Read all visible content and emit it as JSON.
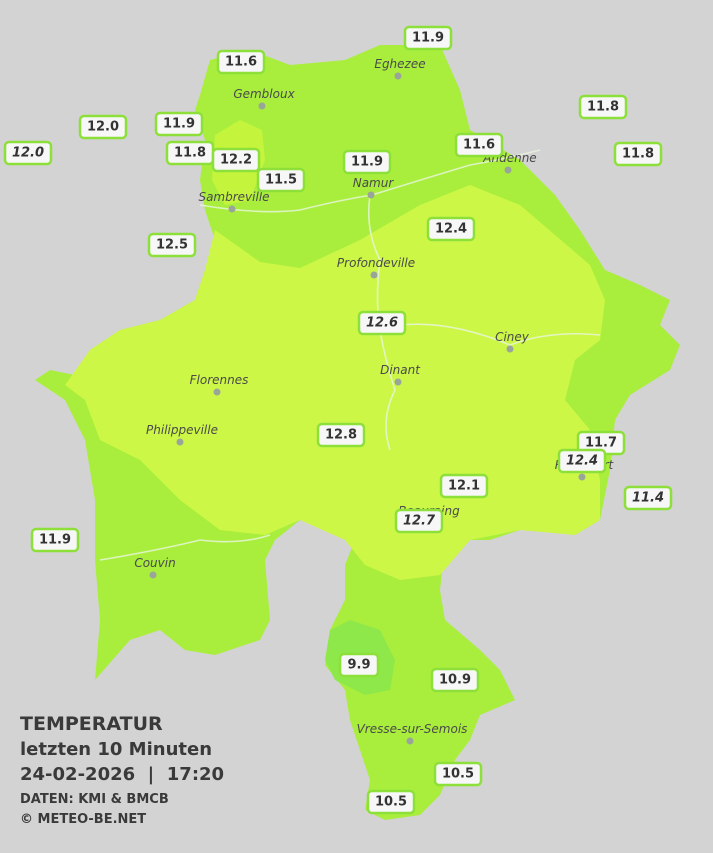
{
  "legend": {
    "title": "TEMPERATUR",
    "subtitle": "letzten 10 Minuten",
    "datetime": "24-02-2026  |  17:20",
    "source": "DATEN: KMI & BMCB",
    "copyright": "© METEO-BE.NET"
  },
  "cities": [
    "Eghezee",
    "Gembloux",
    "Andenne",
    "Namur",
    "Sambreville",
    "Profondeville",
    "Ciney",
    "Dinant",
    "Florennes",
    "Philippeville",
    "Rochefort",
    "Beauraing",
    "Couvin",
    "Vresse-sur-Semois"
  ],
  "stations": [
    {
      "label": "11.9",
      "italic": false
    },
    {
      "label": "11.6",
      "italic": false
    },
    {
      "label": "11.8",
      "italic": false
    },
    {
      "label": "12.0",
      "italic": false
    },
    {
      "label": "11.9",
      "italic": false
    },
    {
      "label": "11.6",
      "italic": false
    },
    {
      "label": "12.0",
      "italic": true
    },
    {
      "label": "11.8",
      "italic": false
    },
    {
      "label": "12.2",
      "italic": false
    },
    {
      "label": "11.9",
      "italic": false
    },
    {
      "label": "11.8",
      "italic": false
    },
    {
      "label": "11.5",
      "italic": false
    },
    {
      "label": "12.4",
      "italic": false
    },
    {
      "label": "12.5",
      "italic": false
    },
    {
      "label": "12.6",
      "italic": true
    },
    {
      "label": "12.8",
      "italic": false
    },
    {
      "label": "11.7",
      "italic": false
    },
    {
      "label": "12.4",
      "italic": true
    },
    {
      "label": "12.1",
      "italic": false
    },
    {
      "label": "11.4",
      "italic": true
    },
    {
      "label": "12.7",
      "italic": true
    },
    {
      "label": "11.9",
      "italic": false
    },
    {
      "label": "9.9",
      "italic": false
    },
    {
      "label": "10.9",
      "italic": false
    },
    {
      "label": "10.5",
      "italic": false
    },
    {
      "label": "10.5",
      "italic": false
    }
  ]
}
